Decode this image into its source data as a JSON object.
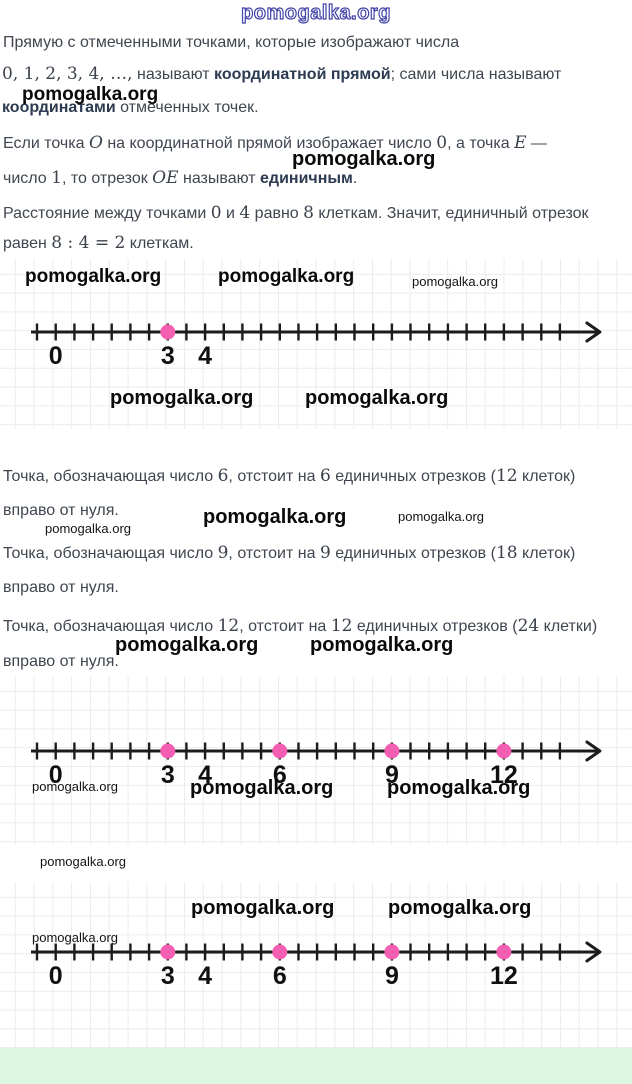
{
  "watermark": {
    "text": "pomogalka.org"
  },
  "colors": {
    "body_text": "#3f4650",
    "bold_term": "#2c3b50",
    "point_pink": "#f55fb2",
    "axis_black": "#1c1c1c",
    "grid_gray": "#ebebeb",
    "watermark_outline_blue": "#4444aa",
    "footer_strip_green": "#ddf7e5"
  },
  "paragraphs": {
    "p1": {
      "l1": "Прямую с отмеченными точками, которые изображают числа",
      "l2_nums": "0, 1, 2, 3, 4, …,",
      "l2_t1": " называют ",
      "l2_b1": "координатной прямой",
      "l2_t2": "; сами числа называют",
      "l3_b1": "координатами",
      "l3_t1": " отмеченных точек."
    },
    "p2": {
      "l1_t1": "Если точка ",
      "l1_m1": "O",
      "l1_t2": " на координатной прямой изображает число ",
      "l1_n1": "0",
      "l1_t3": ", а точка ",
      "l1_m2": "E",
      "l1_t4": " —",
      "l2_t1": "число ",
      "l2_n1": "1",
      "l2_t2": ", то отрезок ",
      "l2_m1": "OE",
      "l2_t3": " называют ",
      "l2_b1": "единичным",
      "l2_t4": "."
    },
    "p3": {
      "l1_t1": "Расстояние между точками ",
      "l1_n1": "0",
      "l1_t2": " и ",
      "l1_n2": "4",
      "l1_t3": " равно ",
      "l1_n3": "8",
      "l1_t4": " клеткам. Значит, единичный отрезок",
      "l2_t1": "равен ",
      "l2_n1": "8 : 4 = 2",
      "l2_t2": " клеткам."
    },
    "p4": {
      "l1_t1": "Точка, обозначающая число ",
      "l1_n1": "6",
      "l1_t2": ", отстоит на ",
      "l1_n2": "6",
      "l1_t3": " единичных отрезков (",
      "l1_n3": "12",
      "l1_t4": " клеток)",
      "l2": "вправо от нуля."
    },
    "p5": {
      "l1_t1": "Точка, обозначающая число ",
      "l1_n1": "9",
      "l1_t2": ", отстоит на ",
      "l1_n2": "9",
      "l1_t3": " единичных отрезков (",
      "l1_n3": "18",
      "l1_t4": " клеток)",
      "l2": "вправо от нуля."
    },
    "p6": {
      "l1_t1": "Точка, обозначающая число ",
      "l1_n1": "12",
      "l1_t2": ", отстоит на ",
      "l1_n2": "12",
      "l1_t3": " единичных отрезков (",
      "l1_n3": "24",
      "l1_t4": " клетки)",
      "l2": "вправо от нуля."
    }
  },
  "diagrams": [
    {
      "name": "number-line-1",
      "type": "number_line",
      "value_min": -0.5,
      "value_max": 13.5,
      "tick_step": 0.5,
      "cells_per_unit": 2,
      "labeled_values": [
        {
          "v": 0,
          "t": "0"
        },
        {
          "v": 3,
          "t": "3"
        },
        {
          "v": 4,
          "t": "4"
        }
      ],
      "points": [
        3
      ]
    },
    {
      "name": "number-line-2",
      "type": "number_line",
      "value_min": -0.5,
      "value_max": 13.5,
      "tick_step": 0.5,
      "cells_per_unit": 2,
      "labeled_values": [
        {
          "v": 0,
          "t": "0"
        },
        {
          "v": 3,
          "t": "3"
        },
        {
          "v": 4,
          "t": "4"
        },
        {
          "v": 6,
          "t": "6"
        },
        {
          "v": 9,
          "t": "9"
        },
        {
          "v": 12,
          "t": "12"
        }
      ],
      "points": [
        3,
        6,
        9,
        12
      ]
    },
    {
      "name": "number-line-3",
      "type": "number_line",
      "value_min": -0.5,
      "value_max": 13.5,
      "tick_step": 0.5,
      "cells_per_unit": 2,
      "labeled_values": [
        {
          "v": 0,
          "t": "0"
        },
        {
          "v": 3,
          "t": "3"
        },
        {
          "v": 4,
          "t": "4"
        },
        {
          "v": 6,
          "t": "6"
        },
        {
          "v": 9,
          "t": "9"
        },
        {
          "v": 12,
          "t": "12"
        }
      ],
      "points": [
        3,
        6,
        9,
        12
      ]
    }
  ]
}
